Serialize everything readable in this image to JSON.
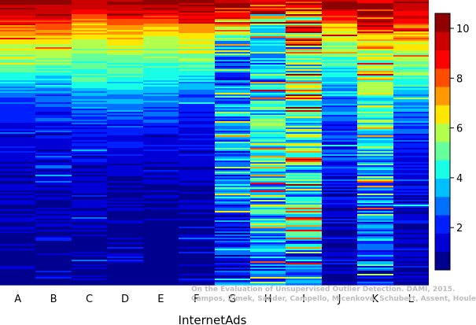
{
  "chart_data": {
    "type": "heatmap",
    "title": "",
    "xlabel": "InternetAds",
    "ylabel": "",
    "categories": [
      "A",
      "B",
      "C",
      "D",
      "E",
      "F",
      "G",
      "H",
      "I",
      "J",
      "K",
      "L"
    ],
    "colorbar": {
      "min": 0.3,
      "max": 10.6,
      "ticks": [
        2,
        4,
        6,
        8,
        10
      ],
      "colors": [
        "#00008f",
        "#0000d6",
        "#001fff",
        "#0070ff",
        "#00bfff",
        "#19ffe6",
        "#66ff99",
        "#b3ff4d",
        "#ffe600",
        "#ff9900",
        "#ff4d00",
        "#ff0000",
        "#cc0000",
        "#8f0000"
      ]
    },
    "columns": [
      {
        "name": "A",
        "profile": [
          [
            0.0,
            10.2
          ],
          [
            0.03,
            9.8
          ],
          [
            0.06,
            8.8
          ],
          [
            0.1,
            7.6
          ],
          [
            0.15,
            6.6
          ],
          [
            0.21,
            5.5
          ],
          [
            0.27,
            4.2
          ],
          [
            0.33,
            2.7
          ],
          [
            0.45,
            1.6
          ],
          [
            0.6,
            1.1
          ],
          [
            0.8,
            0.8
          ],
          [
            1.0,
            0.6
          ]
        ],
        "noise": 0.55,
        "spike_rate": 0.05,
        "spike_amp": 2.0,
        "seed": 11
      },
      {
        "name": "B",
        "profile": [
          [
            0.0,
            10.3
          ],
          [
            0.03,
            9.9
          ],
          [
            0.06,
            9.0
          ],
          [
            0.1,
            7.8
          ],
          [
            0.15,
            6.7
          ],
          [
            0.21,
            5.6
          ],
          [
            0.27,
            4.3
          ],
          [
            0.33,
            2.8
          ],
          [
            0.45,
            1.8
          ],
          [
            0.6,
            1.3
          ],
          [
            0.8,
            0.9
          ],
          [
            1.0,
            0.6
          ]
        ],
        "noise": 0.6,
        "spike_rate": 0.07,
        "spike_amp": 2.2,
        "seed": 23
      },
      {
        "name": "C",
        "profile": [
          [
            0.0,
            9.8
          ],
          [
            0.03,
            9.2
          ],
          [
            0.06,
            8.2
          ],
          [
            0.1,
            7.0
          ],
          [
            0.15,
            6.1
          ],
          [
            0.21,
            5.3
          ],
          [
            0.27,
            4.5
          ],
          [
            0.33,
            3.4
          ],
          [
            0.45,
            2.0
          ],
          [
            0.6,
            1.3
          ],
          [
            0.8,
            0.9
          ],
          [
            1.0,
            0.6
          ]
        ],
        "noise": 0.6,
        "spike_rate": 0.06,
        "spike_amp": 2.2,
        "seed": 37
      },
      {
        "name": "D",
        "profile": [
          [
            0.0,
            10.1
          ],
          [
            0.03,
            9.4
          ],
          [
            0.06,
            8.4
          ],
          [
            0.1,
            7.2
          ],
          [
            0.15,
            6.2
          ],
          [
            0.21,
            5.4
          ],
          [
            0.27,
            4.6
          ],
          [
            0.33,
            3.5
          ],
          [
            0.45,
            2.1
          ],
          [
            0.6,
            1.2
          ],
          [
            0.8,
            0.8
          ],
          [
            1.0,
            0.6
          ]
        ],
        "noise": 0.55,
        "spike_rate": 0.05,
        "spike_amp": 2.0,
        "seed": 41
      },
      {
        "name": "E",
        "profile": [
          [
            0.0,
            10.4
          ],
          [
            0.03,
            9.6
          ],
          [
            0.06,
            8.4
          ],
          [
            0.1,
            7.1
          ],
          [
            0.15,
            5.9
          ],
          [
            0.21,
            5.1
          ],
          [
            0.27,
            4.2
          ],
          [
            0.33,
            3.2
          ],
          [
            0.45,
            2.0
          ],
          [
            0.6,
            1.0
          ],
          [
            0.8,
            0.6
          ],
          [
            1.0,
            0.5
          ]
        ],
        "noise": 0.45,
        "spike_rate": 0.03,
        "spike_amp": 1.8,
        "seed": 53
      },
      {
        "name": "F",
        "profile": [
          [
            0.0,
            10.3
          ],
          [
            0.03,
            9.7
          ],
          [
            0.06,
            8.6
          ],
          [
            0.1,
            7.4
          ],
          [
            0.15,
            6.3
          ],
          [
            0.21,
            5.3
          ],
          [
            0.27,
            4.0
          ],
          [
            0.33,
            2.7
          ],
          [
            0.45,
            1.7
          ],
          [
            0.6,
            1.1
          ],
          [
            0.8,
            0.8
          ],
          [
            1.0,
            0.6
          ]
        ],
        "noise": 0.55,
        "spike_rate": 0.05,
        "spike_amp": 2.0,
        "seed": 67
      },
      {
        "name": "G",
        "profile": [
          [
            0.0,
            10.1
          ],
          [
            0.03,
            9.5
          ],
          [
            0.06,
            8.0
          ],
          [
            0.1,
            6.3
          ],
          [
            0.15,
            4.0
          ],
          [
            0.21,
            2.5
          ],
          [
            0.27,
            2.2
          ],
          [
            0.33,
            3.0
          ],
          [
            0.45,
            3.3
          ],
          [
            0.6,
            2.8
          ],
          [
            0.8,
            2.0
          ],
          [
            1.0,
            1.6
          ]
        ],
        "noise": 1.3,
        "spike_rate": 0.2,
        "spike_amp": 4.0,
        "seed": 71
      },
      {
        "name": "H",
        "profile": [
          [
            0.0,
            9.5
          ],
          [
            0.03,
            8.2
          ],
          [
            0.06,
            6.5
          ],
          [
            0.1,
            5.0
          ],
          [
            0.15,
            3.8
          ],
          [
            0.21,
            3.0
          ],
          [
            0.27,
            3.4
          ],
          [
            0.33,
            4.2
          ],
          [
            0.45,
            4.6
          ],
          [
            0.6,
            4.0
          ],
          [
            0.8,
            3.4
          ],
          [
            1.0,
            2.6
          ]
        ],
        "noise": 1.7,
        "spike_rate": 0.25,
        "spike_amp": 4.5,
        "seed": 83
      },
      {
        "name": "I",
        "profile": [
          [
            0.0,
            9.2
          ],
          [
            0.03,
            8.0
          ],
          [
            0.06,
            6.0
          ],
          [
            0.1,
            6.8
          ],
          [
            0.15,
            6.0
          ],
          [
            0.21,
            5.0
          ],
          [
            0.27,
            4.3
          ],
          [
            0.33,
            4.6
          ],
          [
            0.45,
            4.8
          ],
          [
            0.6,
            4.2
          ],
          [
            0.8,
            3.2
          ],
          [
            1.0,
            2.2
          ]
        ],
        "noise": 1.9,
        "spike_rate": 0.28,
        "spike_amp": 5.0,
        "seed": 97
      },
      {
        "name": "J",
        "profile": [
          [
            0.0,
            10.2
          ],
          [
            0.03,
            9.6
          ],
          [
            0.06,
            8.4
          ],
          [
            0.1,
            7.0
          ],
          [
            0.15,
            5.6
          ],
          [
            0.21,
            4.6
          ],
          [
            0.27,
            4.0
          ],
          [
            0.33,
            3.3
          ],
          [
            0.45,
            2.4
          ],
          [
            0.6,
            1.7
          ],
          [
            0.8,
            1.2
          ],
          [
            1.0,
            0.8
          ]
        ],
        "noise": 0.9,
        "spike_rate": 0.1,
        "spike_amp": 2.8,
        "seed": 101
      },
      {
        "name": "K",
        "profile": [
          [
            0.0,
            9.6
          ],
          [
            0.03,
            9.2
          ],
          [
            0.06,
            8.4
          ],
          [
            0.1,
            7.4
          ],
          [
            0.15,
            6.6
          ],
          [
            0.21,
            5.9
          ],
          [
            0.27,
            5.6
          ],
          [
            0.33,
            5.2
          ],
          [
            0.45,
            4.4
          ],
          [
            0.6,
            3.5
          ],
          [
            0.8,
            2.6
          ],
          [
            1.0,
            1.8
          ]
        ],
        "noise": 1.5,
        "spike_rate": 0.22,
        "spike_amp": 4.2,
        "seed": 113
      },
      {
        "name": "L",
        "profile": [
          [
            0.0,
            10.2
          ],
          [
            0.03,
            9.6
          ],
          [
            0.06,
            8.6
          ],
          [
            0.1,
            7.5
          ],
          [
            0.15,
            6.6
          ],
          [
            0.21,
            5.7
          ],
          [
            0.27,
            4.7
          ],
          [
            0.33,
            3.5
          ],
          [
            0.45,
            2.4
          ],
          [
            0.6,
            1.6
          ],
          [
            0.8,
            1.1
          ],
          [
            1.0,
            0.7
          ]
        ],
        "noise": 0.8,
        "spike_rate": 0.09,
        "spike_amp": 2.6,
        "seed": 127
      }
    ]
  },
  "watermark": {
    "line1": "On the Evaluation of Unsupervised Outlier Detection. DAMI, 2015.",
    "line2": "Campos, Zimek, Sander, Campello, Micenková, Schubert, Assent, Houle"
  }
}
